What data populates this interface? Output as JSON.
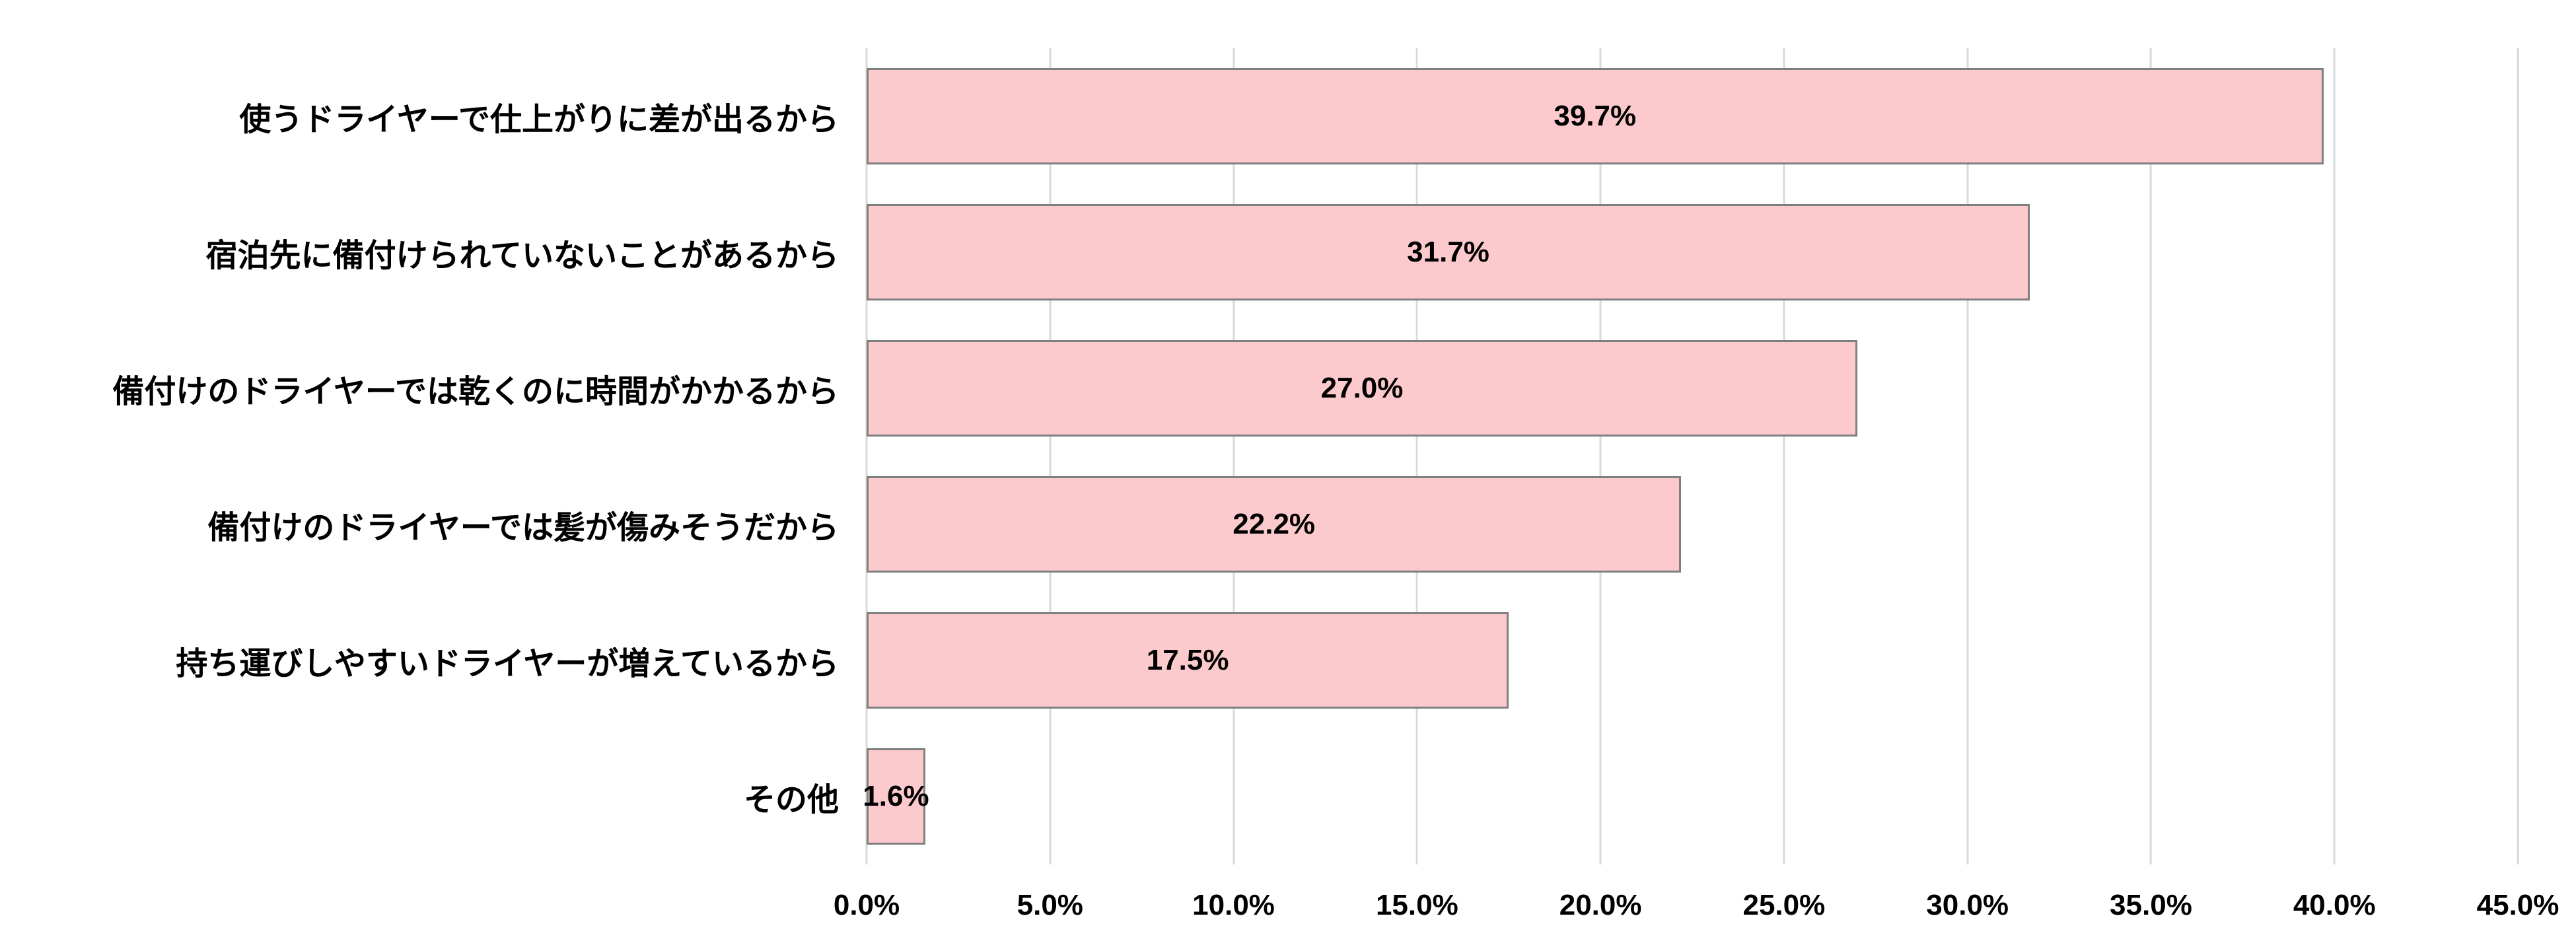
{
  "chart_data": {
    "type": "bar",
    "orientation": "horizontal",
    "title": "",
    "xlabel": "",
    "ylabel": "",
    "legend": "none",
    "grid": "vertical",
    "categories": [
      "使うドライヤーで仕上がりに差が出るから",
      "宿泊先に備付けられていないことがあるから",
      "備付けのドライヤーでは乾くのに時間がかかるから",
      "備付けのドライヤーでは髪が傷みそうだから",
      "持ち運びしやすいドライヤーが増えているから",
      "その他"
    ],
    "values": [
      39.7,
      31.7,
      27.0,
      22.2,
      17.5,
      1.6
    ],
    "value_labels": [
      "39.7%",
      "31.7%",
      "27.0%",
      "22.2%",
      "17.5%",
      "1.6%"
    ],
    "x_ticks": [
      0,
      5,
      10,
      15,
      20,
      25,
      30,
      35,
      40,
      45
    ],
    "x_tick_labels": [
      "0.0%",
      "5.0%",
      "10.0%",
      "15.0%",
      "20.0%",
      "25.0%",
      "30.0%",
      "35.0%",
      "40.0%",
      "45.0%"
    ],
    "xlim": [
      0,
      45
    ],
    "colors": {
      "bar_fill": "#FCCACC",
      "bar_border": "#7F7F7F",
      "gridline": "#D9D9D9",
      "text": "#000000",
      "background": "#FFFFFF"
    }
  }
}
